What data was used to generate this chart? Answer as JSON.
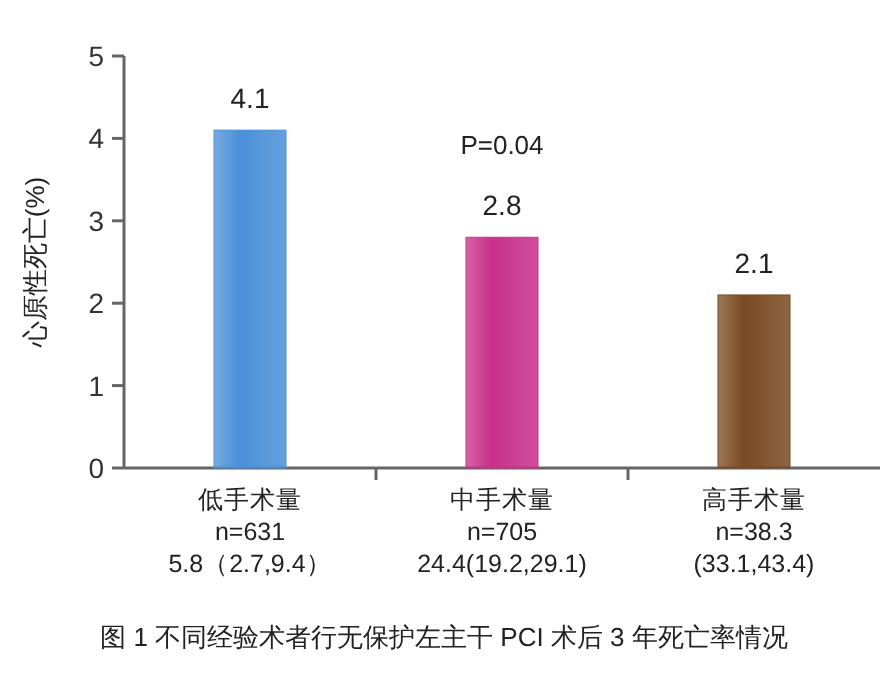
{
  "chart_data": {
    "type": "bar",
    "categories": [
      "低手术量\nn=631\n5.8（2.7,9.4）",
      "中手术量\nn=705\n24.4(19.2,29.1)",
      "高手术量\nn=38.3\n(33.1,43.4)"
    ],
    "values": [
      4.1,
      2.8,
      2.1
    ],
    "colors": [
      "#4a8fd8",
      "#c8308a",
      "#7a4a22"
    ],
    "ylabel": "心原性死亡(%)",
    "ylim": [
      0,
      5
    ],
    "yticks": [
      0,
      1,
      2,
      3,
      4,
      5
    ],
    "data_labels": true,
    "grid": false,
    "annotations": [
      "P=0.04",
      "图 1 不同经验术者行无保护左主干 PCI 术后 3 年死亡率情况"
    ]
  }
}
